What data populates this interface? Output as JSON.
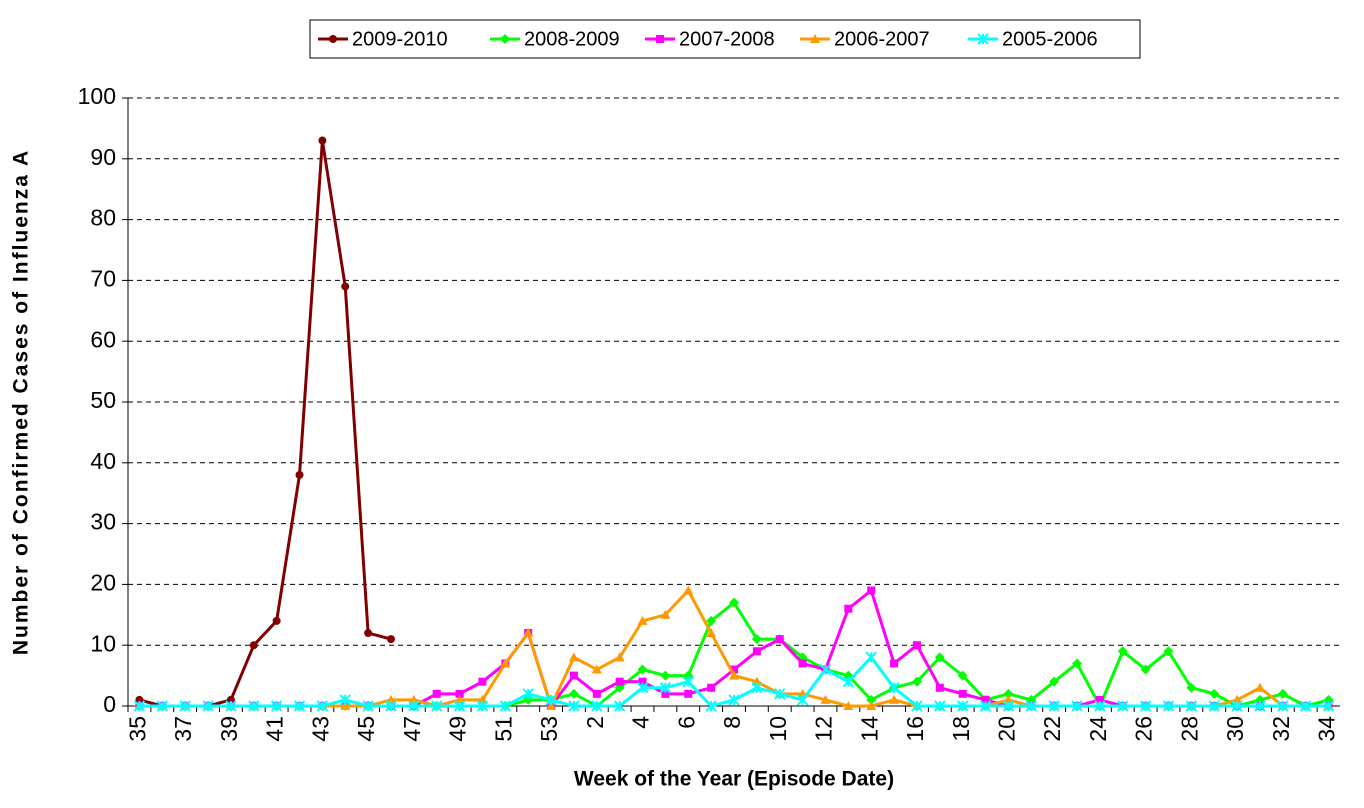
{
  "chart_data": {
    "type": "line",
    "x_label": "Week of the Year (Episode Date)",
    "y_label": "Number of Confirmed Cases of Influenza A",
    "categories": [
      "35",
      null,
      "37",
      null,
      "39",
      null,
      "41",
      null,
      "43",
      null,
      "45",
      null,
      "47",
      null,
      "49",
      null,
      "51",
      null,
      "53",
      null,
      "2",
      null,
      "4",
      null,
      "6",
      null,
      "8",
      null,
      "10",
      null,
      "12",
      null,
      "14",
      null,
      "16",
      null,
      "18",
      null,
      "20",
      null,
      "22",
      null,
      "24",
      null,
      "26",
      null,
      "28",
      null,
      "30",
      null,
      "32",
      null,
      "34"
    ],
    "ylim": [
      0,
      100
    ],
    "yticks": [
      0,
      10,
      20,
      30,
      40,
      50,
      60,
      70,
      80,
      90,
      100
    ],
    "grid": true,
    "legend": "top",
    "series": [
      {
        "name": "2009-2010",
        "color": "#800000",
        "marker": "circle",
        "values": [
          1,
          0,
          0,
          0,
          1,
          10,
          14,
          38,
          93,
          69,
          12,
          11,
          null,
          null,
          null,
          null,
          null,
          null,
          null,
          null,
          null,
          null,
          null,
          null,
          null,
          null,
          null,
          null,
          null,
          null,
          null,
          null,
          null,
          null,
          null,
          null,
          null,
          null,
          null,
          null,
          null,
          null,
          null,
          null,
          null,
          null,
          null,
          null,
          null,
          null,
          null,
          null,
          null
        ]
      },
      {
        "name": "2008-2009",
        "color": "#00ff00",
        "marker": "diamond",
        "values": [
          0,
          0,
          0,
          0,
          0,
          0,
          0,
          0,
          0,
          0,
          0,
          0,
          0,
          0,
          0,
          0,
          0,
          1,
          1,
          2,
          0,
          3,
          6,
          5,
          5,
          14,
          17,
          11,
          11,
          8,
          6,
          5,
          1,
          3,
          4,
          8,
          5,
          1,
          2,
          1,
          4,
          7,
          0,
          9,
          6,
          9,
          3,
          2,
          0,
          1,
          2,
          0,
          1
        ]
      },
      {
        "name": "2007-2008",
        "color": "#ff00ff",
        "marker": "square",
        "values": [
          0,
          0,
          0,
          0,
          0,
          0,
          0,
          0,
          0,
          0,
          0,
          0,
          0,
          2,
          2,
          4,
          7,
          12,
          0,
          5,
          2,
          4,
          4,
          2,
          2,
          3,
          6,
          9,
          11,
          7,
          6,
          16,
          19,
          7,
          10,
          3,
          2,
          1,
          0,
          0,
          0,
          0,
          1,
          0,
          0,
          0,
          0,
          0,
          0,
          0,
          0,
          0,
          0
        ]
      },
      {
        "name": "2006-2007",
        "color": "#ff9900",
        "marker": "triangle",
        "values": [
          0,
          0,
          0,
          0,
          0,
          0,
          0,
          0,
          0,
          0,
          0,
          1,
          1,
          0,
          1,
          1,
          7,
          12,
          0,
          8,
          6,
          8,
          14,
          15,
          19,
          12,
          5,
          4,
          2,
          2,
          1,
          0,
          0,
          1,
          0,
          0,
          0,
          0,
          1,
          0,
          0,
          0,
          0,
          0,
          0,
          0,
          0,
          0,
          1,
          3,
          0,
          0,
          0
        ]
      },
      {
        "name": "2005-2006",
        "color": "#00ffff",
        "marker": "star",
        "values": [
          0,
          0,
          0,
          0,
          0,
          0,
          0,
          0,
          0,
          1,
          0,
          0,
          0,
          0,
          0,
          0,
          0,
          2,
          1,
          0,
          0,
          0,
          3,
          3,
          4,
          0,
          1,
          3,
          2,
          1,
          6,
          4,
          8,
          3,
          0,
          0,
          0,
          0,
          0,
          0,
          0,
          0,
          0,
          0,
          0,
          0,
          0,
          0,
          0,
          0,
          0,
          0,
          0
        ]
      }
    ]
  }
}
